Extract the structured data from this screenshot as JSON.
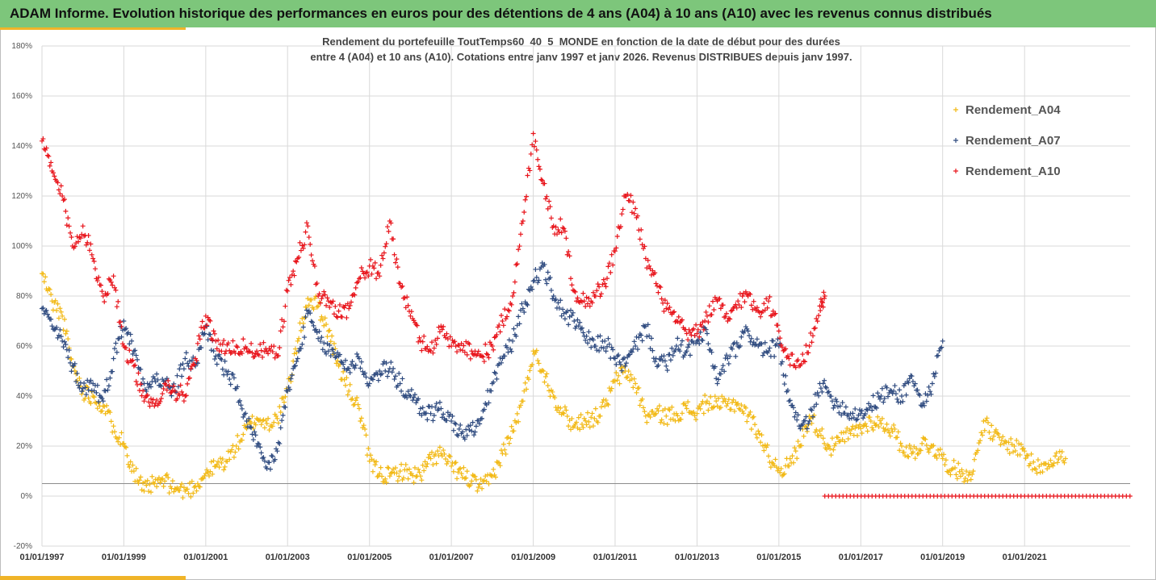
{
  "header": {
    "title": "ADAM Informe. Evolution historique des performances en euros pour des détentions de 4 ans (A04) à 10 ans (A10) avec les revenus connus distribués",
    "accent_color": "#7dc67b",
    "underline_color": "#f0b428"
  },
  "chart_data": {
    "type": "scatter",
    "title": "",
    "subtitle_lines": [
      "Rendement du portefeuille ToutTemps60_40_5_MONDE  en fonction de la date de début pour des durées",
      "entre 4 (A04) et 10 ans (A10). Cotations entre janv 1997 et janv 2026. Revenus DISTRIBUES depuis janv 1997."
    ],
    "xlabel": "",
    "ylabel": "",
    "x_axis": {
      "min": "1997-01-01",
      "max": "2023-08-01",
      "ticks": [
        "01/01/1997",
        "01/01/1999",
        "01/01/2001",
        "01/01/2003",
        "01/01/2005",
        "01/01/2007",
        "01/01/2009",
        "01/01/2011",
        "01/01/2013",
        "01/01/2015",
        "01/01/2017",
        "01/01/2019",
        "01/01/2021"
      ]
    },
    "y_axis": {
      "min": -20,
      "max": 180,
      "unit": "%",
      "ticks": [
        "180%",
        "160%",
        "140%",
        "120%",
        "100%",
        "80%",
        "60%",
        "40%",
        "20%",
        "0%",
        "-20%"
      ],
      "reference_line": 5
    },
    "grid": true,
    "legend_position": "right",
    "series": [
      {
        "name": "Rendement_A04",
        "color": "#f2b915",
        "marker": "+",
        "points": [
          [
            "1997-01-01",
            89
          ],
          [
            "1997-04-01",
            78
          ],
          [
            "1997-07-01",
            72
          ],
          [
            "1997-10-01",
            52
          ],
          [
            "1998-01-01",
            42
          ],
          [
            "1998-04-01",
            40
          ],
          [
            "1998-07-01",
            36
          ],
          [
            "1998-10-01",
            28
          ],
          [
            "1999-01-01",
            21
          ],
          [
            "1999-04-01",
            10
          ],
          [
            "1999-07-01",
            2
          ],
          [
            "1999-10-01",
            5
          ],
          [
            "2000-01-01",
            6
          ],
          [
            "2000-04-01",
            3
          ],
          [
            "2000-07-01",
            2
          ],
          [
            "2000-10-01",
            4
          ],
          [
            "2001-01-01",
            9
          ],
          [
            "2001-04-01",
            12
          ],
          [
            "2001-07-01",
            14
          ],
          [
            "2001-10-01",
            20
          ],
          [
            "2002-01-01",
            27
          ],
          [
            "2002-04-01",
            31
          ],
          [
            "2002-07-01",
            29
          ],
          [
            "2002-10-01",
            31
          ],
          [
            "2003-01-01",
            42
          ],
          [
            "2003-04-01",
            62
          ],
          [
            "2003-07-01",
            79
          ],
          [
            "2003-10-01",
            76
          ],
          [
            "2004-01-01",
            66
          ],
          [
            "2004-04-01",
            52
          ],
          [
            "2004-07-01",
            42
          ],
          [
            "2004-10-01",
            35
          ],
          [
            "2005-01-01",
            14
          ],
          [
            "2005-04-01",
            9
          ],
          [
            "2005-07-01",
            8
          ],
          [
            "2005-10-01",
            10
          ],
          [
            "2006-01-01",
            9
          ],
          [
            "2006-04-01",
            8
          ],
          [
            "2006-07-01",
            15
          ],
          [
            "2006-10-01",
            17
          ],
          [
            "2007-01-01",
            12
          ],
          [
            "2007-04-01",
            9
          ],
          [
            "2007-07-01",
            6
          ],
          [
            "2007-10-01",
            3
          ],
          [
            "2008-01-01",
            8
          ],
          [
            "2008-04-01",
            17
          ],
          [
            "2008-07-01",
            26
          ],
          [
            "2008-10-01",
            38
          ],
          [
            "2009-01-01",
            58
          ],
          [
            "2009-04-01",
            50
          ],
          [
            "2009-07-01",
            40
          ],
          [
            "2009-10-01",
            33
          ],
          [
            "2010-01-01",
            28
          ],
          [
            "2010-04-01",
            31
          ],
          [
            "2010-07-01",
            31
          ],
          [
            "2010-10-01",
            36
          ],
          [
            "2011-01-01",
            46
          ],
          [
            "2011-04-01",
            50
          ],
          [
            "2011-07-01",
            45
          ],
          [
            "2011-10-01",
            32
          ],
          [
            "2012-01-01",
            33
          ],
          [
            "2012-04-01",
            32
          ],
          [
            "2012-07-01",
            33
          ],
          [
            "2012-10-01",
            35
          ],
          [
            "2013-01-01",
            33
          ],
          [
            "2013-04-01",
            38
          ],
          [
            "2013-07-01",
            36
          ],
          [
            "2013-10-01",
            37
          ],
          [
            "2014-01-01",
            37
          ],
          [
            "2014-04-01",
            32
          ],
          [
            "2014-07-01",
            26
          ],
          [
            "2014-10-01",
            16
          ],
          [
            "2015-01-01",
            11
          ],
          [
            "2015-04-01",
            12
          ],
          [
            "2015-07-01",
            20
          ],
          [
            "2015-10-01",
            32
          ],
          [
            "2016-01-01",
            26
          ],
          [
            "2016-04-01",
            19
          ],
          [
            "2016-07-01",
            22
          ],
          [
            "2016-10-01",
            25
          ],
          [
            "2017-01-01",
            27
          ],
          [
            "2017-04-01",
            30
          ],
          [
            "2017-07-01",
            29
          ],
          [
            "2017-10-01",
            27
          ],
          [
            "2018-01-01",
            20
          ],
          [
            "2018-04-01",
            17
          ],
          [
            "2018-07-01",
            21
          ],
          [
            "2018-10-01",
            20
          ],
          [
            "2019-01-01",
            15
          ],
          [
            "2019-04-01",
            11
          ],
          [
            "2019-07-01",
            9
          ],
          [
            "2019-10-01",
            10
          ],
          [
            "2020-01-01",
            30
          ],
          [
            "2020-04-01",
            24
          ],
          [
            "2020-07-01",
            21
          ],
          [
            "2020-10-01",
            20
          ],
          [
            "2021-01-01",
            18
          ],
          [
            "2021-04-01",
            11
          ],
          [
            "2021-07-01",
            13
          ],
          [
            "2021-10-01",
            16
          ],
          [
            "2022-01-01",
            15
          ]
        ]
      },
      {
        "name": "Rendement_A07",
        "color": "#2e4a7f",
        "marker": "+",
        "points": [
          [
            "1997-01-01",
            75
          ],
          [
            "1997-04-01",
            68
          ],
          [
            "1997-07-01",
            62
          ],
          [
            "1997-10-01",
            52
          ],
          [
            "1998-01-01",
            43
          ],
          [
            "1998-04-01",
            45
          ],
          [
            "1998-07-01",
            38
          ],
          [
            "1998-10-01",
            55
          ],
          [
            "1999-01-01",
            70
          ],
          [
            "1999-04-01",
            58
          ],
          [
            "1999-07-01",
            45
          ],
          [
            "1999-10-01",
            47
          ],
          [
            "2000-01-01",
            45
          ],
          [
            "2000-04-01",
            42
          ],
          [
            "2000-07-01",
            55
          ],
          [
            "2000-10-01",
            52
          ],
          [
            "2001-01-01",
            68
          ],
          [
            "2001-04-01",
            56
          ],
          [
            "2001-07-01",
            50
          ],
          [
            "2001-10-01",
            43
          ],
          [
            "2002-01-01",
            30
          ],
          [
            "2002-04-01",
            20
          ],
          [
            "2002-07-01",
            11
          ],
          [
            "2002-10-01",
            18
          ],
          [
            "2003-01-01",
            42
          ],
          [
            "2003-04-01",
            55
          ],
          [
            "2003-07-01",
            73
          ],
          [
            "2003-10-01",
            63
          ],
          [
            "2004-01-01",
            58
          ],
          [
            "2004-04-01",
            56
          ],
          [
            "2004-07-01",
            51
          ],
          [
            "2004-10-01",
            55
          ],
          [
            "2005-01-01",
            45
          ],
          [
            "2005-04-01",
            50
          ],
          [
            "2005-07-01",
            51
          ],
          [
            "2005-10-01",
            45
          ],
          [
            "2006-01-01",
            40
          ],
          [
            "2006-04-01",
            35
          ],
          [
            "2006-07-01",
            33
          ],
          [
            "2006-10-01",
            35
          ],
          [
            "2007-01-01",
            30
          ],
          [
            "2007-04-01",
            25
          ],
          [
            "2007-07-01",
            26
          ],
          [
            "2007-10-01",
            31
          ],
          [
            "2008-01-01",
            45
          ],
          [
            "2008-04-01",
            55
          ],
          [
            "2008-07-01",
            62
          ],
          [
            "2008-10-01",
            75
          ],
          [
            "2009-01-01",
            86
          ],
          [
            "2009-04-01",
            92
          ],
          [
            "2009-07-01",
            80
          ],
          [
            "2009-10-01",
            73
          ],
          [
            "2010-01-01",
            70
          ],
          [
            "2010-04-01",
            64
          ],
          [
            "2010-07-01",
            60
          ],
          [
            "2010-10-01",
            62
          ],
          [
            "2011-01-01",
            55
          ],
          [
            "2011-04-01",
            52
          ],
          [
            "2011-07-01",
            60
          ],
          [
            "2011-10-01",
            68
          ],
          [
            "2012-01-01",
            55
          ],
          [
            "2012-04-01",
            52
          ],
          [
            "2012-07-01",
            60
          ],
          [
            "2012-10-01",
            58
          ],
          [
            "2013-01-01",
            62
          ],
          [
            "2013-04-01",
            65
          ],
          [
            "2013-07-01",
            45
          ],
          [
            "2013-10-01",
            55
          ],
          [
            "2014-01-01",
            60
          ],
          [
            "2014-04-01",
            66
          ],
          [
            "2014-07-01",
            60
          ],
          [
            "2014-10-01",
            58
          ],
          [
            "2015-01-01",
            60
          ],
          [
            "2015-04-01",
            38
          ],
          [
            "2015-07-01",
            28
          ],
          [
            "2015-10-01",
            30
          ],
          [
            "2016-01-01",
            45
          ],
          [
            "2016-04-01",
            40
          ],
          [
            "2016-07-01",
            36
          ],
          [
            "2016-10-01",
            33
          ],
          [
            "2017-01-01",
            33
          ],
          [
            "2017-04-01",
            36
          ],
          [
            "2017-07-01",
            40
          ],
          [
            "2017-10-01",
            42
          ],
          [
            "2018-01-01",
            40
          ],
          [
            "2018-04-01",
            48
          ],
          [
            "2018-07-01",
            36
          ],
          [
            "2018-10-01",
            45
          ],
          [
            "2019-01-01",
            62
          ]
        ]
      },
      {
        "name": "Rendement_A10",
        "color": "#e8141b",
        "marker": "+",
        "points": [
          [
            "1997-01-01",
            142
          ],
          [
            "1997-04-01",
            130
          ],
          [
            "1997-07-01",
            120
          ],
          [
            "1997-10-01",
            100
          ],
          [
            "1998-01-01",
            108
          ],
          [
            "1998-04-01",
            95
          ],
          [
            "1998-07-01",
            80
          ],
          [
            "1998-10-01",
            88
          ],
          [
            "1999-01-01",
            60
          ],
          [
            "1999-04-01",
            52
          ],
          [
            "1999-07-01",
            38
          ],
          [
            "1999-10-01",
            36
          ],
          [
            "2000-01-01",
            45
          ],
          [
            "2000-04-01",
            42
          ],
          [
            "2000-07-01",
            40
          ],
          [
            "2000-10-01",
            55
          ],
          [
            "2001-01-01",
            72
          ],
          [
            "2001-04-01",
            62
          ],
          [
            "2001-07-01",
            58
          ],
          [
            "2001-10-01",
            60
          ],
          [
            "2002-01-01",
            59
          ],
          [
            "2002-04-01",
            58
          ],
          [
            "2002-07-01",
            58
          ],
          [
            "2002-10-01",
            56
          ],
          [
            "2003-01-01",
            82
          ],
          [
            "2003-04-01",
            95
          ],
          [
            "2003-07-01",
            108
          ],
          [
            "2003-10-01",
            80
          ],
          [
            "2004-01-01",
            78
          ],
          [
            "2004-04-01",
            74
          ],
          [
            "2004-07-01",
            75
          ],
          [
            "2004-10-01",
            87
          ],
          [
            "2005-01-01",
            92
          ],
          [
            "2005-04-01",
            88
          ],
          [
            "2005-07-01",
            110
          ],
          [
            "2005-10-01",
            85
          ],
          [
            "2006-01-01",
            72
          ],
          [
            "2006-04-01",
            62
          ],
          [
            "2006-07-01",
            58
          ],
          [
            "2006-10-01",
            68
          ],
          [
            "2007-01-01",
            60
          ],
          [
            "2007-04-01",
            61
          ],
          [
            "2007-07-01",
            58
          ],
          [
            "2007-10-01",
            56
          ],
          [
            "2008-01-01",
            60
          ],
          [
            "2008-04-01",
            70
          ],
          [
            "2008-07-01",
            80
          ],
          [
            "2008-10-01",
            110
          ],
          [
            "2009-01-01",
            145
          ],
          [
            "2009-04-01",
            125
          ],
          [
            "2009-07-01",
            108
          ],
          [
            "2009-10-01",
            107
          ],
          [
            "2010-01-01",
            82
          ],
          [
            "2010-04-01",
            78
          ],
          [
            "2010-07-01",
            80
          ],
          [
            "2010-10-01",
            85
          ],
          [
            "2011-01-01",
            98
          ],
          [
            "2011-04-01",
            120
          ],
          [
            "2011-07-01",
            115
          ],
          [
            "2011-10-01",
            95
          ],
          [
            "2012-01-01",
            85
          ],
          [
            "2012-04-01",
            75
          ],
          [
            "2012-07-01",
            70
          ],
          [
            "2012-10-01",
            65
          ],
          [
            "2013-01-01",
            65
          ],
          [
            "2013-04-01",
            72
          ],
          [
            "2013-07-01",
            78
          ],
          [
            "2013-10-01",
            70
          ],
          [
            "2014-01-01",
            78
          ],
          [
            "2014-04-01",
            80
          ],
          [
            "2014-07-01",
            74
          ],
          [
            "2014-10-01",
            78
          ],
          [
            "2015-01-01",
            66
          ],
          [
            "2015-04-01",
            55
          ],
          [
            "2015-07-01",
            52
          ],
          [
            "2015-10-01",
            60
          ],
          [
            "2016-01-01",
            76
          ],
          [
            "2016-02-15",
            80
          ]
        ]
      }
    ],
    "a10_zero_segment": {
      "from": "2016-02-15",
      "to": "2023-08-01",
      "value": 0
    }
  }
}
